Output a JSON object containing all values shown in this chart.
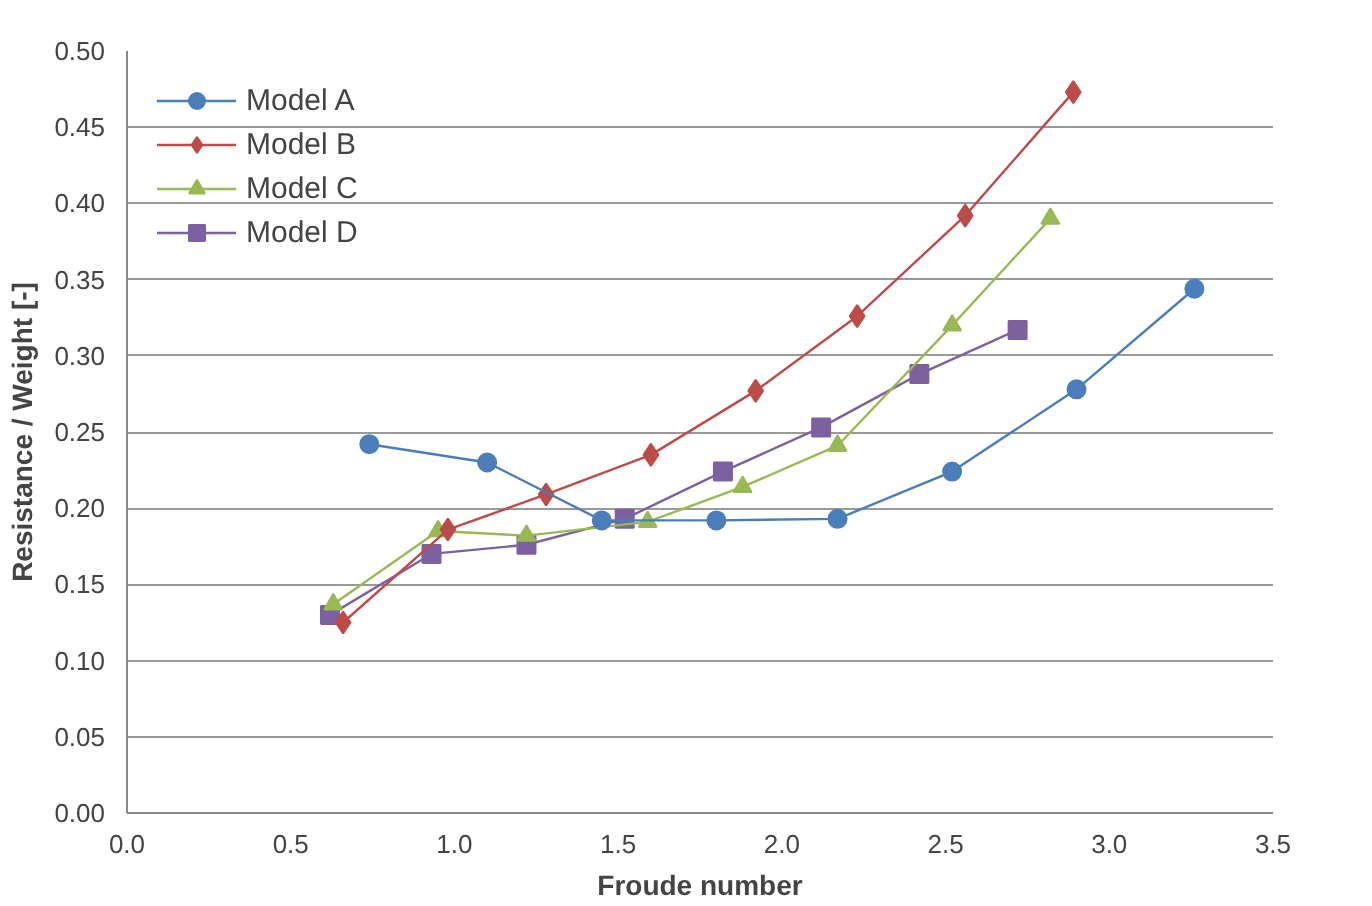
{
  "chart_data": {
    "type": "line",
    "xlabel": "Froude number",
    "ylabel": "Resistance / Weight [-]",
    "xlim": [
      0,
      3.5
    ],
    "xticks": [
      {
        "value": 0,
        "label": "0.0"
      },
      {
        "value": 0.5,
        "label": "0.5"
      },
      {
        "value": 1,
        "label": "1.0"
      },
      {
        "value": 1.5,
        "label": "1.5"
      },
      {
        "value": 2,
        "label": "2.0"
      },
      {
        "value": 2.5,
        "label": "2.5"
      },
      {
        "value": 3,
        "label": "3.0"
      },
      {
        "value": 3.5,
        "label": "3.5"
      }
    ],
    "ylim": [
      0,
      0.5
    ],
    "yticks": [
      {
        "value": 0,
        "label": "0.00"
      },
      {
        "value": 0.05,
        "label": "0.05"
      },
      {
        "value": 0.1,
        "label": "0.10"
      },
      {
        "value": 0.15,
        "label": "0.15"
      },
      {
        "value": 0.2,
        "label": "0.20"
      },
      {
        "value": 0.25,
        "label": "0.25"
      },
      {
        "value": 0.3,
        "label": "0.30"
      },
      {
        "value": 0.35,
        "label": "0.35"
      },
      {
        "value": 0.4,
        "label": "0.40"
      },
      {
        "value": 0.45,
        "label": "0.45"
      },
      {
        "value": 0.5,
        "label": "0.50"
      }
    ],
    "grid": "y",
    "legend": "top left",
    "line_style": "solid",
    "series": [
      {
        "name": "Model A",
        "color": "#4a7ebb",
        "marker": "circle",
        "x": [
          0.74,
          1.1,
          1.45,
          1.8,
          2.17,
          2.52,
          2.9,
          3.26
        ],
        "values": [
          0.242,
          0.23,
          0.192,
          0.192,
          0.193,
          0.224,
          0.278,
          0.344
        ]
      },
      {
        "name": "Model B",
        "color": "#be4b48",
        "marker": "diamond",
        "x": [
          0.66,
          0.98,
          1.28,
          1.6,
          1.92,
          2.23,
          2.56,
          2.89
        ],
        "values": [
          0.125,
          0.186,
          0.209,
          0.235,
          0.277,
          0.326,
          0.392,
          0.473
        ]
      },
      {
        "name": "Model C",
        "color": "#98b954",
        "marker": "triangle",
        "x": [
          0.63,
          0.95,
          1.22,
          1.59,
          1.88,
          2.17,
          2.52,
          2.82
        ],
        "values": [
          0.137,
          0.185,
          0.182,
          0.191,
          0.214,
          0.241,
          0.32,
          0.39
        ]
      },
      {
        "name": "Model D",
        "color": "#7d60a0",
        "marker": "square",
        "x": [
          0.62,
          0.93,
          1.22,
          1.52,
          1.82,
          2.12,
          2.42,
          2.72
        ],
        "values": [
          0.13,
          0.17,
          0.176,
          0.193,
          0.224,
          0.253,
          0.288,
          0.317
        ]
      }
    ]
  }
}
